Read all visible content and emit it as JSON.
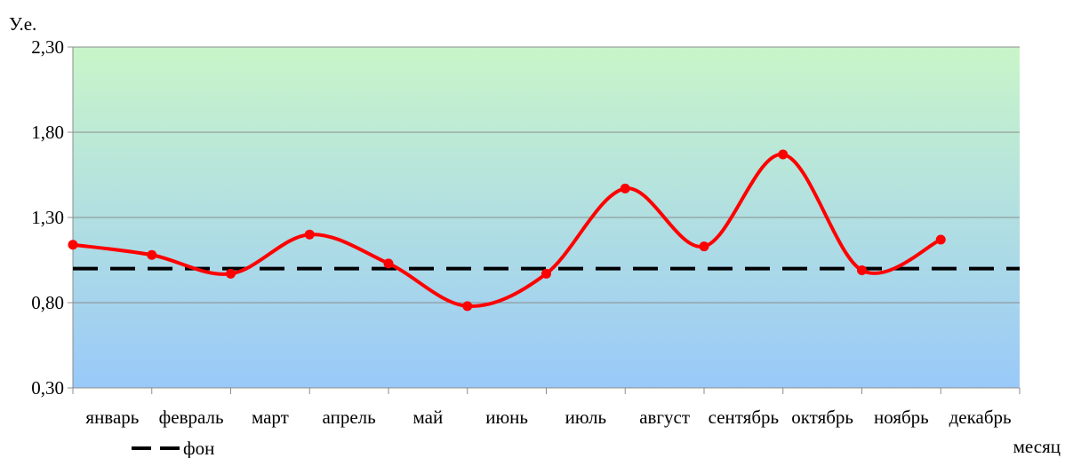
{
  "chart_data": {
    "type": "line",
    "ylabel": "У.е.",
    "xlabel": "месяц",
    "ylim": [
      0.3,
      2.3
    ],
    "yticks": [
      "0,30",
      "0,80",
      "1,30",
      "1,80",
      "2,30"
    ],
    "ytick_values": [
      0.3,
      0.8,
      1.3,
      1.8,
      2.3
    ],
    "categories": [
      "январь",
      "февраль",
      "март",
      "апрель",
      "май",
      "июнь",
      "июль",
      "август",
      "сентябрь",
      "октябрь",
      "ноябрь",
      "декабрь"
    ],
    "series": [
      {
        "values": [
          1.14,
          1.08,
          0.97,
          1.2,
          1.03,
          0.78,
          0.97,
          1.47,
          1.13,
          1.67,
          0.99,
          1.17
        ],
        "color": "#ff0000",
        "style": "smooth-line-markers"
      },
      {
        "name": "фон",
        "values": [
          1.0,
          1.0,
          1.0,
          1.0,
          1.0,
          1.0,
          1.0,
          1.0,
          1.0,
          1.0,
          1.0,
          1.0
        ],
        "color": "#000000",
        "style": "dashed"
      }
    ],
    "grid": true,
    "legend_position": "bottom-left",
    "background_gradient": [
      "#c9f5c9",
      "#99c9f9"
    ]
  }
}
